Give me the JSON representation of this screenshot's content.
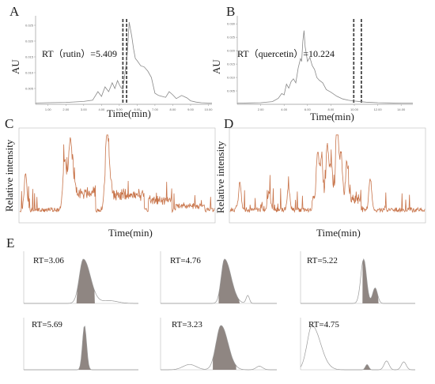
{
  "figure": {
    "panels": [
      "A",
      "B",
      "C",
      "D",
      "E"
    ]
  },
  "chart_data": [
    {
      "id": "A",
      "type": "line",
      "ylabel": "AU",
      "xlabel": "Time(min)",
      "x_ticks": [
        "1.00",
        "2.00",
        "3.00",
        "4.00",
        "5.00",
        "6.00",
        "7.00",
        "8.00",
        "9.00",
        "10.00"
      ],
      "y_ticks": [
        "0.005",
        "0.010",
        "0.015",
        "0.020",
        "0.025"
      ],
      "xlim": [
        0.3,
        10.2
      ],
      "ylim": [
        0,
        0.028
      ],
      "annotation": "RT（rutin）=5.409",
      "dashed_lines_x": [
        5.2,
        5.409
      ],
      "x": [
        0.3,
        1.0,
        2.0,
        3.0,
        3.5,
        3.8,
        4.0,
        4.2,
        4.4,
        4.6,
        4.75,
        4.9,
        5.0,
        5.1,
        5.2,
        5.3,
        5.45,
        5.55,
        5.7,
        5.8,
        5.9,
        6.0,
        6.2,
        6.4,
        6.6,
        6.8,
        7.0,
        7.2,
        7.4,
        7.6,
        7.8,
        8.0,
        8.2,
        8.5,
        8.8,
        9.0,
        9.3,
        9.6,
        10.0,
        10.2
      ],
      "y": [
        0.0004,
        0.0005,
        0.0006,
        0.0009,
        0.0013,
        0.004,
        0.0025,
        0.0055,
        0.004,
        0.0068,
        0.005,
        0.0075,
        0.0062,
        0.0052,
        0.0048,
        0.009,
        0.016,
        0.026,
        0.0215,
        0.0175,
        0.0145,
        0.0138,
        0.0122,
        0.0118,
        0.0105,
        0.0085,
        0.0035,
        0.0028,
        0.0025,
        0.0022,
        0.004,
        0.003,
        0.0018,
        0.0028,
        0.002,
        0.0011,
        0.0007,
        0.0005,
        0.0004,
        0.0004
      ]
    },
    {
      "id": "B",
      "type": "line",
      "ylabel": "AU",
      "xlabel": "Time(min)",
      "x_ticks": [
        "2.00",
        "4.00",
        "6.00",
        "8.00",
        "10.00",
        "12.00",
        "14.00"
      ],
      "y_ticks": [
        "0.005",
        "0.010",
        "0.015",
        "0.020",
        "0.025",
        "0.030"
      ],
      "xlim": [
        0,
        15
      ],
      "ylim": [
        0,
        0.033
      ],
      "annotation": "RT（quercetin）=10.224",
      "dashed_lines_x": [
        9.95,
        10.6
      ],
      "x": [
        0,
        1.0,
        2.0,
        3.0,
        3.5,
        3.8,
        4.0,
        4.2,
        4.4,
        4.6,
        4.8,
        5.0,
        5.2,
        5.4,
        5.5,
        5.6,
        5.7,
        5.8,
        6.0,
        6.2,
        6.4,
        6.6,
        6.8,
        7.0,
        7.3,
        7.6,
        8.0,
        8.5,
        9.0,
        9.5,
        10.0,
        10.3,
        11.0,
        12.0,
        13.0,
        14.0,
        15.0
      ],
      "y": [
        0.0004,
        0.0005,
        0.0006,
        0.001,
        0.0022,
        0.004,
        0.0035,
        0.0075,
        0.006,
        0.0085,
        0.0095,
        0.008,
        0.0135,
        0.017,
        0.016,
        0.0235,
        0.0275,
        0.0215,
        0.016,
        0.0175,
        0.0145,
        0.013,
        0.01,
        0.009,
        0.008,
        0.0055,
        0.0045,
        0.003,
        0.002,
        0.0015,
        0.0012,
        0.0011,
        0.0008,
        0.0006,
        0.0005,
        0.0004,
        0.0004
      ]
    },
    {
      "id": "C",
      "type": "line",
      "ylabel": "Relative intensity",
      "xlabel": "Time(min)",
      "series_color": "#c8744a"
    },
    {
      "id": "D",
      "type": "line",
      "ylabel": "Relative intensity",
      "xlabel": "Time(min)",
      "series_color": "#c8744a"
    },
    {
      "id": "E",
      "type": "area",
      "fill_color": "#8f8682",
      "subplots": [
        {
          "label": "RT=3.06"
        },
        {
          "label": "RT=4.76"
        },
        {
          "label": "RT=5.22"
        },
        {
          "label": "RT=5.69"
        },
        {
          "label": "RT=3.23"
        },
        {
          "label": "RT=4.75"
        }
      ]
    }
  ]
}
